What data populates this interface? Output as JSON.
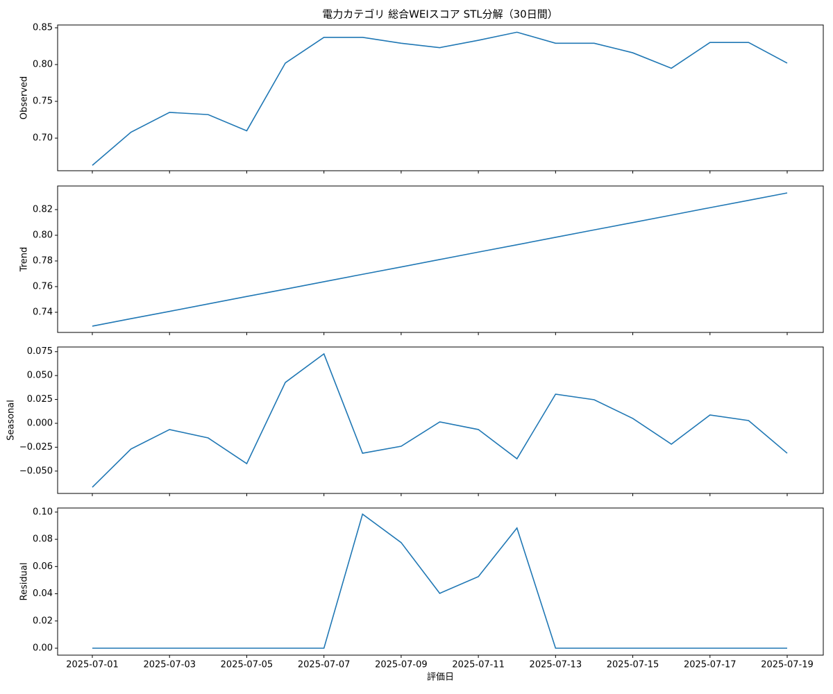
{
  "chart_data": [
    {
      "type": "line",
      "title": "電力カテゴリ 総合WEIスコア STL分解（30日間）",
      "ylabel": "Observed",
      "color": "#1f77b4",
      "x": [
        "2025-07-01",
        "2025-07-02",
        "2025-07-03",
        "2025-07-04",
        "2025-07-05",
        "2025-07-06",
        "2025-07-07",
        "2025-07-08",
        "2025-07-09",
        "2025-07-10",
        "2025-07-11",
        "2025-07-12",
        "2025-07-13",
        "2025-07-14",
        "2025-07-15",
        "2025-07-16",
        "2025-07-17",
        "2025-07-18",
        "2025-07-19"
      ],
      "values": [
        0.663,
        0.708,
        0.735,
        0.732,
        0.71,
        0.802,
        0.837,
        0.837,
        0.829,
        0.823,
        0.833,
        0.844,
        0.829,
        0.829,
        0.816,
        0.795,
        0.83,
        0.83,
        0.802
      ],
      "ylim": [
        0.6557,
        0.8538
      ],
      "yticks": [
        {
          "value": 0.7,
          "label": "0.70"
        },
        0.75,
        {
          "value": 0.8,
          "label": "0.80"
        },
        0.85
      ]
    },
    {
      "type": "line",
      "ylabel": "Trend",
      "color": "#1f77b4",
      "x": [
        "2025-07-01",
        "2025-07-02",
        "2025-07-03",
        "2025-07-04",
        "2025-07-05",
        "2025-07-06",
        "2025-07-07",
        "2025-07-08",
        "2025-07-09",
        "2025-07-10",
        "2025-07-11",
        "2025-07-12",
        "2025-07-13",
        "2025-07-14",
        "2025-07-15",
        "2025-07-16",
        "2025-07-17",
        "2025-07-18",
        "2025-07-19"
      ],
      "values": [
        0.7292,
        0.735,
        0.7407,
        0.7465,
        0.7523,
        0.758,
        0.7638,
        0.7696,
        0.7753,
        0.7811,
        0.7869,
        0.7926,
        0.7984,
        0.8042,
        0.8099,
        0.8157,
        0.8215,
        0.8272,
        0.833
      ],
      "ylim": [
        0.7243,
        0.8384
      ],
      "yticks": [
        0.74,
        0.76,
        0.78,
        {
          "value": 0.8,
          "label": "0.80"
        },
        0.82
      ]
    },
    {
      "type": "line",
      "ylabel": "Seasonal",
      "color": "#1f77b4",
      "x": [
        "2025-07-01",
        "2025-07-02",
        "2025-07-03",
        "2025-07-04",
        "2025-07-05",
        "2025-07-06",
        "2025-07-07",
        "2025-07-08",
        "2025-07-09",
        "2025-07-10",
        "2025-07-11",
        "2025-07-12",
        "2025-07-13",
        "2025-07-14",
        "2025-07-15",
        "2025-07-16",
        "2025-07-17",
        "2025-07-18",
        "2025-07-19"
      ],
      "values": [
        -0.0669,
        -0.0269,
        -0.0065,
        -0.0153,
        -0.0422,
        0.0429,
        0.0727,
        -0.0313,
        -0.024,
        0.0015,
        -0.0065,
        -0.0371,
        0.0305,
        0.0247,
        0.0051,
        -0.0218,
        0.0087,
        0.0029,
        -0.0313
      ],
      "ylim": [
        -0.0734,
        0.0799
      ],
      "yticks": [
        {
          "value": -0.05,
          "label": "−0.050"
        },
        {
          "value": -0.025,
          "label": "−0.025"
        },
        {
          "value": 0,
          "label": "0.000"
        },
        0.025,
        {
          "value": 0.05,
          "label": "0.050"
        },
        0.075
      ]
    },
    {
      "type": "line",
      "ylabel": "Residual",
      "xlabel": "評価日",
      "color": "#1f77b4",
      "x": [
        "2025-07-01",
        "2025-07-02",
        "2025-07-03",
        "2025-07-04",
        "2025-07-05",
        "2025-07-06",
        "2025-07-07",
        "2025-07-08",
        "2025-07-09",
        "2025-07-10",
        "2025-07-11",
        "2025-07-12",
        "2025-07-13",
        "2025-07-14",
        "2025-07-15",
        "2025-07-16",
        "2025-07-17",
        "2025-07-18",
        "2025-07-19"
      ],
      "values": [
        0,
        0,
        0,
        0,
        0,
        0,
        0,
        0.0985,
        0.0776,
        0.0403,
        0.0526,
        0.0883,
        0,
        0,
        0,
        0,
        0,
        0,
        0
      ],
      "ylim": [
        -0.0051,
        0.103
      ],
      "yticks": [
        {
          "value": 0,
          "label": "0.00"
        },
        0.02,
        0.04,
        0.06,
        0.08,
        {
          "value": 0.1,
          "label": "0.10"
        }
      ],
      "xticks": [
        "2025-07-01",
        "2025-07-03",
        "2025-07-05",
        "2025-07-07",
        "2025-07-09",
        "2025-07-11",
        "2025-07-13",
        "2025-07-15",
        "2025-07-17",
        "2025-07-19"
      ]
    }
  ]
}
